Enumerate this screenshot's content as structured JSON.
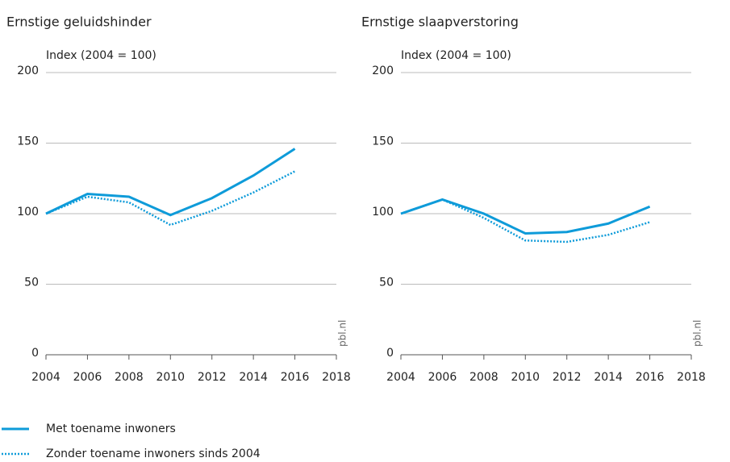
{
  "chart_data": [
    {
      "type": "line",
      "title": "Ernstige geluidshinder",
      "y_label": "Index (2004 = 100)",
      "source": "pbl.nl",
      "x": [
        2004,
        2006,
        2008,
        2010,
        2012,
        2014,
        2016
      ],
      "xlim": [
        2004,
        2018
      ],
      "xticks": [
        2004,
        2006,
        2008,
        2010,
        2012,
        2014,
        2016,
        2018
      ],
      "ylim": [
        0,
        200
      ],
      "yticks": [
        0,
        50,
        100,
        150,
        200
      ],
      "grid": true,
      "series": [
        {
          "name": "Met toename inwoners",
          "color": "#0e9bd9",
          "style": "solid",
          "values": [
            100,
            114,
            112,
            99,
            111,
            127,
            146
          ]
        },
        {
          "name": "Zonder toename inwoners sinds 2004",
          "color": "#0e9bd9",
          "style": "dotted",
          "values": [
            100,
            112,
            108,
            92,
            102,
            115,
            130
          ]
        }
      ]
    },
    {
      "type": "line",
      "title": "Ernstige slaapverstoring",
      "y_label": "Index (2004 = 100)",
      "source": "pbl.nl",
      "x": [
        2004,
        2006,
        2008,
        2010,
        2012,
        2014,
        2016
      ],
      "xlim": [
        2004,
        2018
      ],
      "xticks": [
        2004,
        2006,
        2008,
        2010,
        2012,
        2014,
        2016,
        2018
      ],
      "ylim": [
        0,
        200
      ],
      "yticks": [
        0,
        50,
        100,
        150,
        200
      ],
      "grid": true,
      "series": [
        {
          "color": "#0e9bd9",
          "style": "solid",
          "values": [
            100,
            110,
            100,
            86,
            87,
            93,
            105
          ]
        },
        {
          "color": "#0e9bd9",
          "style": "dotted",
          "values": [
            100,
            110,
            97,
            81,
            80,
            85,
            94
          ]
        }
      ]
    }
  ]
}
